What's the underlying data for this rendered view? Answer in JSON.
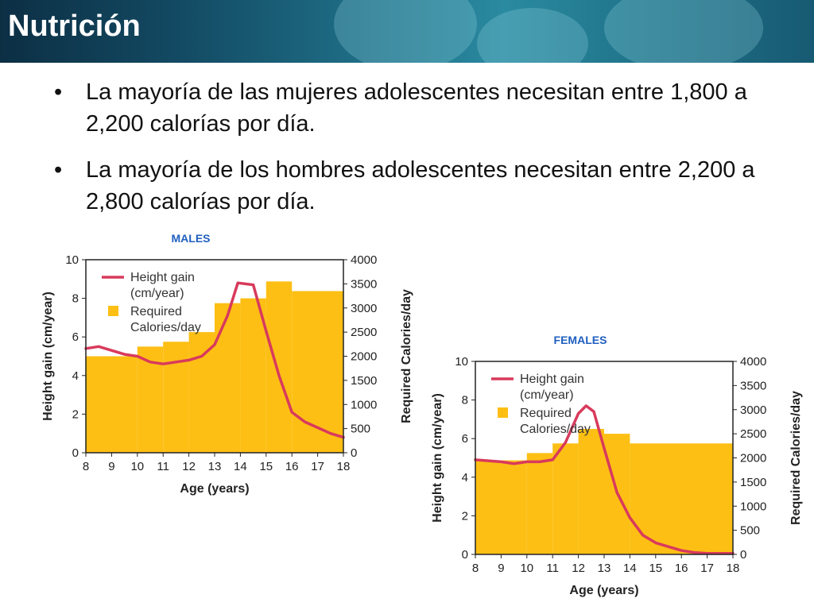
{
  "slide": {
    "title": "Nutrición",
    "bullets": [
      "La mayoría de las mujeres adolescentes necesitan entre 1,800 a 2,200 calorías por día.",
      "La mayoría de los hombres adolescentes necesitan entre 2,200 a 2,800 calorías por día."
    ]
  },
  "colors": {
    "bar": "#fdbf14",
    "line": "#d83a5c",
    "label_blue": "#1f5fbf",
    "axis": "#222222"
  },
  "chart_data": [
    {
      "type": "bar+line",
      "label": "MALES",
      "xlabel": "Age (years)",
      "ylabel_left": "Height gain (cm/year)",
      "ylabel_right": "Required Calories/day",
      "xlim": [
        8,
        18
      ],
      "ylim_left": [
        0,
        10
      ],
      "ylim_right": [
        0,
        4000
      ],
      "xticks": [
        8,
        9,
        10,
        11,
        12,
        13,
        14,
        15,
        16,
        17,
        18
      ],
      "yticks_left": [
        0,
        2,
        4,
        6,
        8,
        10
      ],
      "yticks_right": [
        0,
        500,
        1000,
        1500,
        2000,
        2500,
        3000,
        3500,
        4000
      ],
      "legend": [
        "Height gain (cm/year)",
        "Required Calories/day"
      ],
      "legend_lines": [
        [
          "Height gain",
          "(cm/year)"
        ],
        [
          "Required",
          "Calories/day"
        ]
      ],
      "calories": [
        {
          "from": 8,
          "to": 10,
          "value": 2000
        },
        {
          "from": 10,
          "to": 11,
          "value": 2200
        },
        {
          "from": 11,
          "to": 12,
          "value": 2300
        },
        {
          "from": 12,
          "to": 13,
          "value": 2500
        },
        {
          "from": 13,
          "to": 14,
          "value": 3100
        },
        {
          "from": 14,
          "to": 15,
          "value": 3200
        },
        {
          "from": 15,
          "to": 16,
          "value": 3550
        },
        {
          "from": 16,
          "to": 18,
          "value": 3350
        }
      ],
      "height_gain": [
        [
          8,
          5.4
        ],
        [
          8.5,
          5.5
        ],
        [
          9,
          5.3
        ],
        [
          9.5,
          5.1
        ],
        [
          10,
          5.0
        ],
        [
          10.5,
          4.7
        ],
        [
          11,
          4.6
        ],
        [
          11.5,
          4.7
        ],
        [
          12,
          4.8
        ],
        [
          12.5,
          5.0
        ],
        [
          13,
          5.6
        ],
        [
          13.5,
          7.1
        ],
        [
          13.9,
          8.8
        ],
        [
          14.5,
          8.7
        ],
        [
          15,
          6.3
        ],
        [
          15.5,
          4.0
        ],
        [
          16,
          2.1
        ],
        [
          16.5,
          1.6
        ],
        [
          17,
          1.3
        ],
        [
          17.5,
          1.0
        ],
        [
          18,
          0.8
        ]
      ]
    },
    {
      "type": "bar+line",
      "label": "FEMALES",
      "xlabel": "Age (years)",
      "ylabel_left": "Height gain (cm/year)",
      "ylabel_right": "Required Calories/day",
      "xlim": [
        8,
        18
      ],
      "ylim_left": [
        0,
        10
      ],
      "ylim_right": [
        0,
        4000
      ],
      "xticks": [
        8,
        9,
        10,
        11,
        12,
        13,
        14,
        15,
        16,
        17,
        18
      ],
      "yticks_left": [
        0,
        2,
        4,
        6,
        8,
        10
      ],
      "yticks_right": [
        0,
        500,
        1000,
        1500,
        2000,
        2500,
        3000,
        3500,
        4000
      ],
      "legend": [
        "Height gain (cm/year)",
        "Required Calories/day"
      ],
      "legend_lines": [
        [
          "Height gain",
          "(cm/year)"
        ],
        [
          "Required",
          "Calories/day"
        ]
      ],
      "calories": [
        {
          "from": 8,
          "to": 10,
          "value": 1950
        },
        {
          "from": 10,
          "to": 11,
          "value": 2100
        },
        {
          "from": 11,
          "to": 12,
          "value": 2300
        },
        {
          "from": 12,
          "to": 13,
          "value": 2600
        },
        {
          "from": 13,
          "to": 14,
          "value": 2500
        },
        {
          "from": 14,
          "to": 18,
          "value": 2300
        }
      ],
      "height_gain": [
        [
          8,
          4.9
        ],
        [
          9,
          4.8
        ],
        [
          9.5,
          4.7
        ],
        [
          10,
          4.8
        ],
        [
          10.5,
          4.8
        ],
        [
          11,
          4.9
        ],
        [
          11.5,
          5.8
        ],
        [
          12,
          7.3
        ],
        [
          12.3,
          7.7
        ],
        [
          12.6,
          7.4
        ],
        [
          13,
          5.5
        ],
        [
          13.5,
          3.2
        ],
        [
          14,
          1.9
        ],
        [
          14.5,
          1.0
        ],
        [
          15,
          0.6
        ],
        [
          15.5,
          0.4
        ],
        [
          16,
          0.2
        ],
        [
          16.5,
          0.1
        ],
        [
          17,
          0.05
        ],
        [
          18,
          0.05
        ]
      ]
    }
  ]
}
